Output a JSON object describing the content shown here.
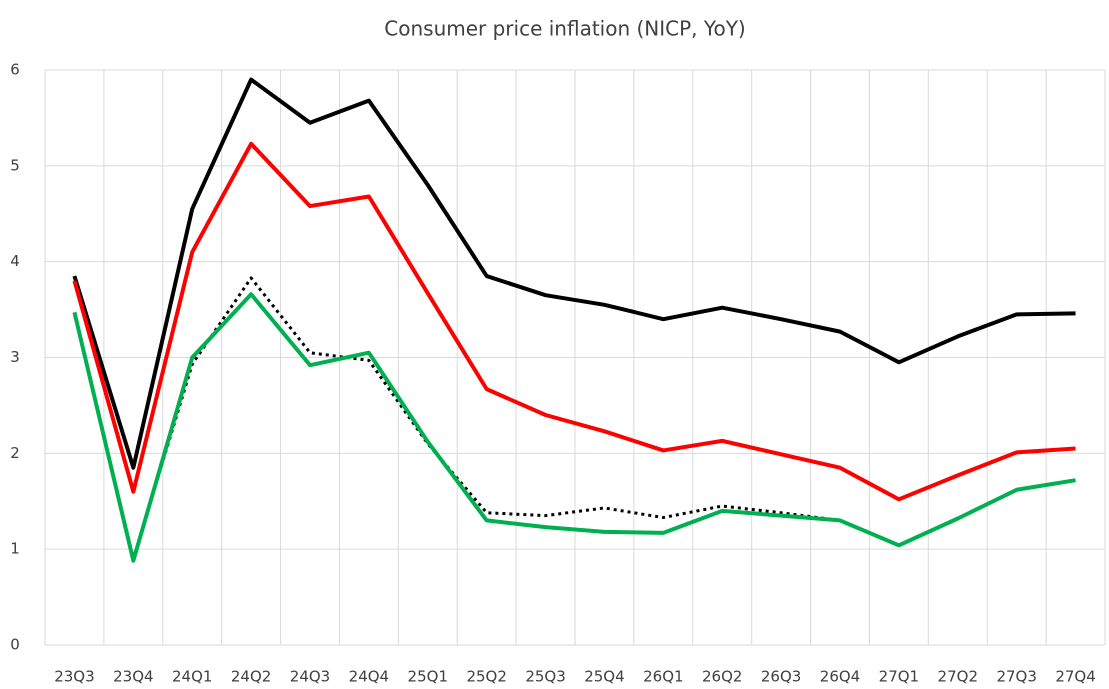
{
  "chart_data": {
    "type": "line",
    "title": "Consumer price inflation (NICP, YoY)",
    "categories": [
      "23Q3",
      "23Q4",
      "24Q1",
      "24Q2",
      "24Q3",
      "24Q4",
      "25Q1",
      "25Q2",
      "25Q3",
      "25Q4",
      "26Q1",
      "26Q2",
      "26Q3",
      "26Q4",
      "27Q1",
      "27Q2",
      "27Q3",
      "27Q4"
    ],
    "series": [
      {
        "color": "#000000",
        "dash": false,
        "values": [
          3.85,
          1.85,
          4.55,
          5.9,
          5.45,
          5.68,
          4.8,
          3.85,
          3.65,
          3.55,
          3.4,
          3.52,
          3.4,
          3.27,
          2.95,
          3.22,
          3.45,
          3.46
        ]
      },
      {
        "color": "#ff0000",
        "dash": false,
        "values": [
          3.8,
          1.6,
          4.1,
          5.23,
          4.58,
          4.68,
          3.67,
          2.67,
          2.4,
          2.23,
          2.03,
          2.13,
          1.99,
          1.85,
          1.52,
          1.77,
          2.01,
          2.05
        ]
      },
      {
        "color": "#000000",
        "dash": true,
        "values": [
          3.47,
          0.9,
          2.93,
          3.83,
          3.05,
          2.97,
          2.1,
          1.38,
          1.35,
          1.43,
          1.33,
          1.45,
          1.38,
          1.3,
          null,
          null,
          null,
          null
        ]
      },
      {
        "color": "#00b050",
        "dash": false,
        "values": [
          3.47,
          0.88,
          3.0,
          3.66,
          2.92,
          3.05,
          2.12,
          1.3,
          1.23,
          1.18,
          1.17,
          1.4,
          1.35,
          1.3,
          1.04,
          1.32,
          1.62,
          1.72
        ]
      }
    ],
    "ylim": [
      0,
      6
    ],
    "yticks": [
      0,
      1,
      2,
      3,
      4,
      5,
      6
    ],
    "grid": true
  }
}
